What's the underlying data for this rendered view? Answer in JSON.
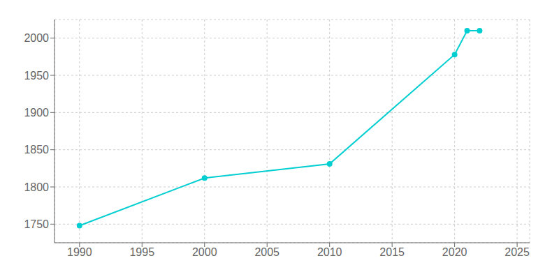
{
  "chart_data": {
    "type": "line",
    "x": [
      1990,
      2000,
      2010,
      2020,
      2021,
      2022
    ],
    "values": [
      1748,
      1812,
      1831,
      1978,
      2010,
      2010
    ],
    "color": "#00CED1",
    "marker": "circle",
    "xlim": [
      1988,
      2026
    ],
    "ylim": [
      1725,
      2025
    ],
    "xticks": [
      1990,
      1995,
      2000,
      2005,
      2010,
      2015,
      2020,
      2025
    ],
    "yticks": [
      1750,
      1800,
      1850,
      1900,
      1950,
      2000
    ],
    "grid": true
  }
}
